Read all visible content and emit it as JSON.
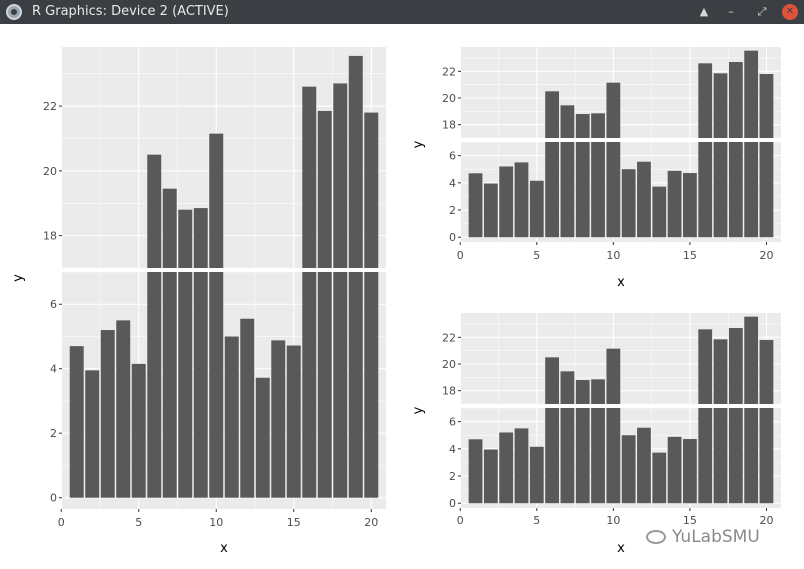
{
  "window": {
    "title": "R Graphics: Device 2 (ACTIVE)",
    "buttons": {
      "eject_icon": "▲",
      "minimize_icon": "–",
      "restore_icon": "⤢",
      "close_icon": "✕"
    }
  },
  "watermark": {
    "text": "YuLabSMU",
    "icon": "wechat-icon"
  },
  "colors": {
    "panel_bg": "#ebebeb",
    "bar": "#595959",
    "grid": "#ffffff",
    "axis_text": "#4d4d4d",
    "axis_title": "#000000"
  },
  "chart_data": [
    {
      "type": "bar",
      "broken_axis": true,
      "x": [
        1,
        2,
        3,
        4,
        5,
        6,
        7,
        8,
        9,
        10,
        11,
        12,
        13,
        14,
        15,
        16,
        17,
        18,
        19,
        20
      ],
      "values": [
        4.7,
        3.95,
        5.2,
        5.5,
        4.15,
        20.5,
        19.45,
        18.8,
        18.85,
        21.15,
        5.0,
        5.55,
        3.72,
        4.88,
        4.72,
        22.6,
        21.85,
        22.7,
        23.55,
        21.8
      ],
      "xlabel": "x",
      "ylabel": "y",
      "xlim": [
        0,
        20
      ],
      "xticks": [
        "0",
        "5",
        "10",
        "15",
        "20"
      ],
      "lower_ylim": [
        0,
        7
      ],
      "lower_yticks": [
        "0",
        "2",
        "4",
        "6"
      ],
      "upper_ylim": [
        17,
        23.5
      ],
      "upper_yticks": [
        "18",
        "20",
        "22"
      ],
      "grid": true
    },
    {
      "type": "bar",
      "broken_axis": true,
      "x": [
        1,
        2,
        3,
        4,
        5,
        6,
        7,
        8,
        9,
        10,
        11,
        12,
        13,
        14,
        15,
        16,
        17,
        18,
        19,
        20
      ],
      "values": [
        4.7,
        3.95,
        5.2,
        5.5,
        4.15,
        20.5,
        19.45,
        18.8,
        18.85,
        21.15,
        5.0,
        5.55,
        3.72,
        4.88,
        4.72,
        22.6,
        21.85,
        22.7,
        23.55,
        21.8
      ],
      "xlabel": "x",
      "ylabel": "y",
      "xlim": [
        0,
        20
      ],
      "xticks": [
        "0",
        "5",
        "10",
        "15",
        "20"
      ],
      "lower_ylim": [
        0,
        7
      ],
      "lower_yticks": [
        "0",
        "2",
        "4",
        "6"
      ],
      "upper_ylim": [
        17,
        23.5
      ],
      "upper_yticks": [
        "18",
        "20",
        "22"
      ],
      "grid": true
    },
    {
      "type": "bar",
      "broken_axis": true,
      "x": [
        1,
        2,
        3,
        4,
        5,
        6,
        7,
        8,
        9,
        10,
        11,
        12,
        13,
        14,
        15,
        16,
        17,
        18,
        19,
        20
      ],
      "values": [
        4.7,
        3.95,
        5.2,
        5.5,
        4.15,
        20.5,
        19.45,
        18.8,
        18.85,
        21.15,
        5.0,
        5.55,
        3.72,
        4.88,
        4.72,
        22.6,
        21.85,
        22.7,
        23.55,
        21.8
      ],
      "xlabel": "x",
      "ylabel": "y",
      "xlim": [
        0,
        20
      ],
      "xticks": [
        "0",
        "5",
        "10",
        "15",
        "20"
      ],
      "lower_ylim": [
        0,
        7
      ],
      "lower_yticks": [
        "0",
        "2",
        "4",
        "6"
      ],
      "upper_ylim": [
        17,
        23.5
      ],
      "upper_yticks": [
        "18",
        "20",
        "22"
      ],
      "grid": true
    }
  ]
}
